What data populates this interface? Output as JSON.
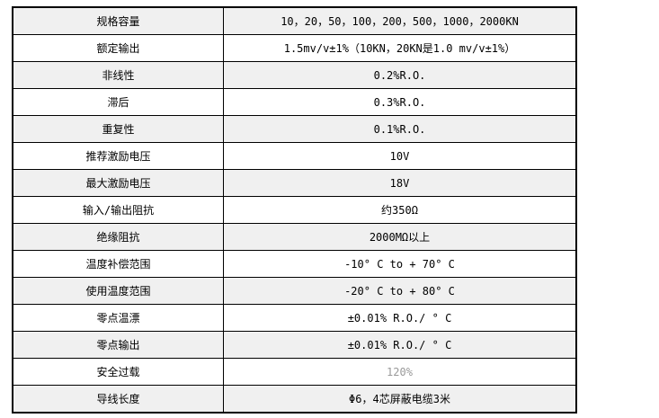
{
  "colors": {
    "row_alt_bg": "#f0f0f0",
    "row_bg": "#ffffff",
    "border": "#000000",
    "text": "#000000",
    "muted_text": "#999999"
  },
  "table": {
    "rows": [
      {
        "label": "规格容量",
        "value": "10，20，50，100，200，500，1000，2000KN"
      },
      {
        "label": "额定输出",
        "value": "1.5mv/v±1%（10KN，20KN是1.0 mv/v±1%）"
      },
      {
        "label": "非线性",
        "value": "0.2%R.O."
      },
      {
        "label": "滞后",
        "value": "0.3%R.O."
      },
      {
        "label": "重复性",
        "value": "0.1%R.O."
      },
      {
        "label": "推荐激励电压",
        "value": "10V"
      },
      {
        "label": "最大激励电压",
        "value": "18V"
      },
      {
        "label": "输入/输出阻抗",
        "value": "约350Ω"
      },
      {
        "label": "绝缘阻抗",
        "value": "2000MΩ以上"
      },
      {
        "label": "温度补偿范围",
        "value": "-10° C to + 70° C"
      },
      {
        "label": "使用温度范围",
        "value": "-20° C to + 80° C"
      },
      {
        "label": "零点温漂",
        "value": "±0.01% R.O./ ° C"
      },
      {
        "label": "零点输出",
        "value": "±0.01% R.O./ ° C"
      },
      {
        "label": "安全过载",
        "value": "120%",
        "muted": true
      },
      {
        "label": "导线长度",
        "value": "Φ6，4芯屏蔽电缆3米"
      }
    ]
  }
}
